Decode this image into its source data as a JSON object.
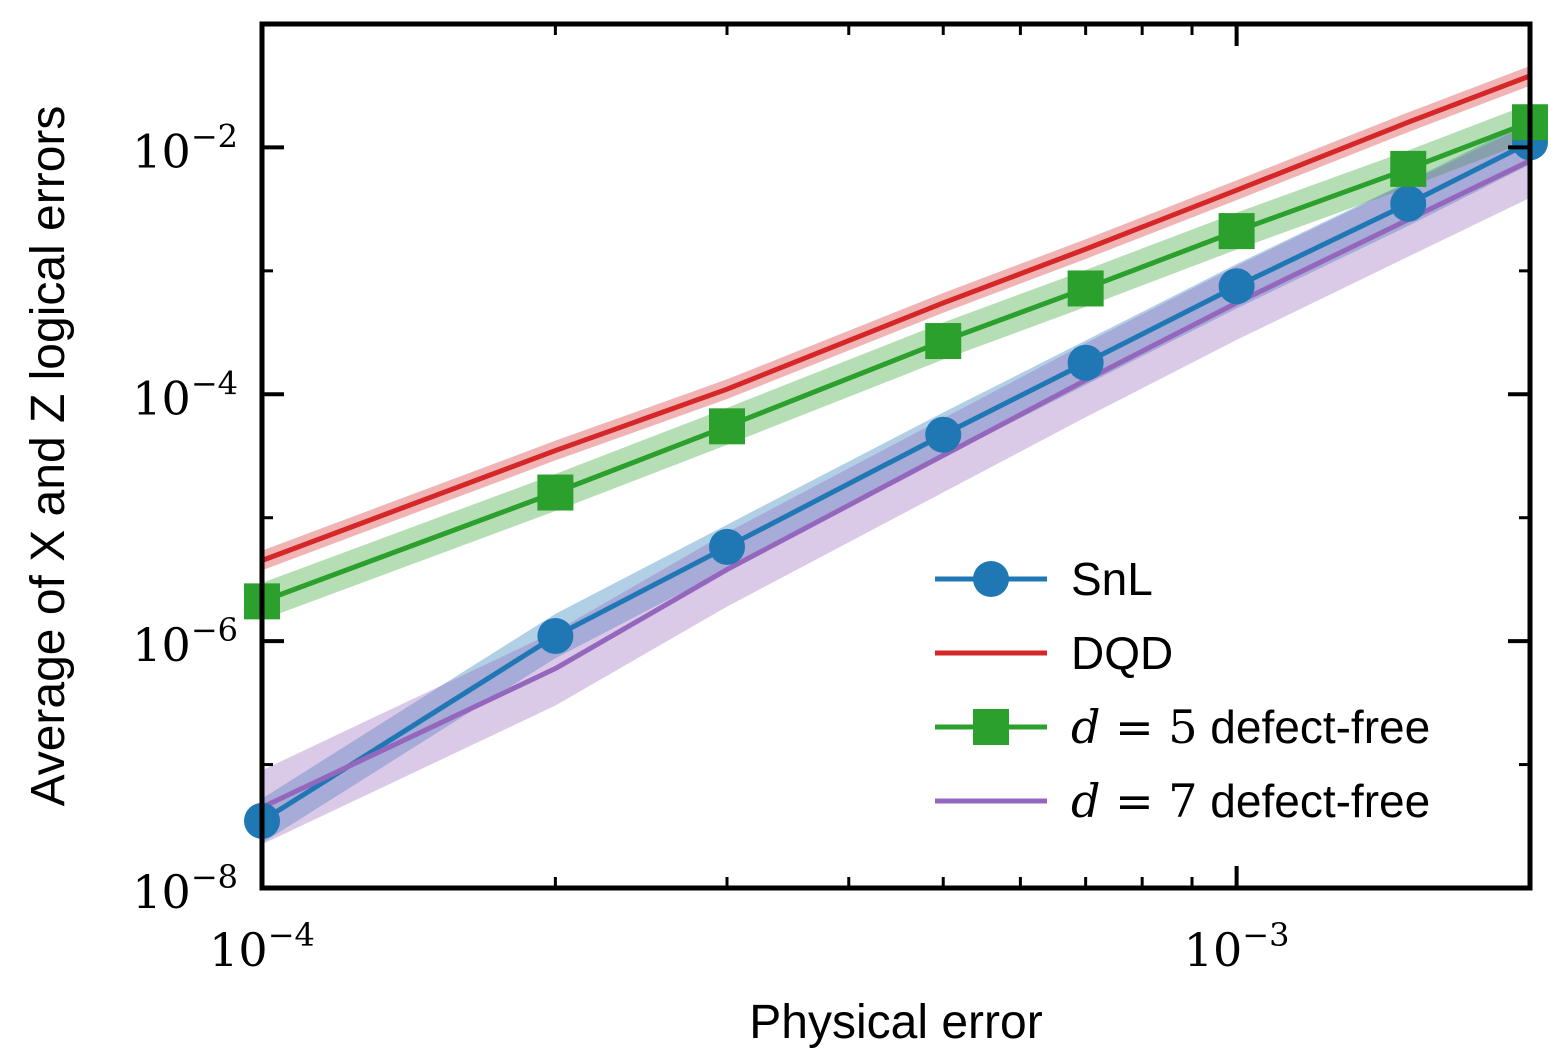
{
  "chart_data": {
    "type": "line",
    "xscale": "log",
    "yscale": "log",
    "xlabel": "Physical error",
    "ylabel": "Average of X and Z logical errors",
    "xlim": [
      0.0001,
      0.002
    ],
    "ylim": [
      1e-08,
      0.1
    ],
    "x_ticks": [
      {
        "value": 0.0001,
        "base": "10",
        "exp": "−4"
      },
      {
        "value": 0.001,
        "base": "10",
        "exp": "−3"
      }
    ],
    "y_ticks": [
      {
        "value": 1e-08,
        "base": "10",
        "exp": "−8"
      },
      {
        "value": 1e-06,
        "base": "10",
        "exp": "−6"
      },
      {
        "value": 0.0001,
        "base": "10",
        "exp": "−4"
      },
      {
        "value": 0.01,
        "base": "10",
        "exp": "−2"
      }
    ],
    "grid": false,
    "legend_position": "lower-right",
    "series": [
      {
        "name": "SnL",
        "label_parts": [
          {
            "text": "SnL",
            "math": false
          }
        ],
        "color": "#1f77b4",
        "marker": "circle",
        "x": [
          0.0001,
          0.0002,
          0.0003,
          0.0005,
          0.0007,
          0.001,
          0.0015,
          0.002
        ],
        "y": [
          3.5e-08,
          1.1e-06,
          5.8e-06,
          4.7e-05,
          0.00018,
          0.00075,
          0.0035,
          0.011
        ],
        "band": 0.18
      },
      {
        "name": "DQD",
        "label_parts": [
          {
            "text": "DQD",
            "math": false
          }
        ],
        "color": "#d62728",
        "marker": "none",
        "x": [
          0.0001,
          0.0002,
          0.0003,
          0.0005,
          0.0007,
          0.001,
          0.0015,
          0.002
        ],
        "y": [
          4.5e-06,
          3.5e-05,
          0.00011,
          0.00055,
          0.0015,
          0.0045,
          0.016,
          0.038
        ],
        "band": 0.08
      },
      {
        "name": "d = 5 defect-free",
        "label_parts": [
          {
            "text": "d",
            "math": true,
            "italic": true
          },
          {
            "text": " = 5",
            "math": true,
            "italic": false
          },
          {
            "text": " defect-free",
            "math": false
          }
        ],
        "color": "#2ca02c",
        "marker": "square",
        "x": [
          0.0001,
          0.0002,
          0.0003,
          0.0005,
          0.0007,
          0.001,
          0.0015,
          0.002
        ],
        "y": [
          2.1e-06,
          1.6e-05,
          5.5e-05,
          0.00027,
          0.00072,
          0.0021,
          0.0067,
          0.016
        ],
        "band": 0.15
      },
      {
        "name": "d = 7 defect-free",
        "label_parts": [
          {
            "text": "d",
            "math": true,
            "italic": true
          },
          {
            "text": " = 7",
            "math": true,
            "italic": false
          },
          {
            "text": " defect-free",
            "math": false
          }
        ],
        "color": "#9467bd",
        "marker": "none",
        "x": [
          0.0001,
          0.0002,
          0.0003,
          0.0005,
          0.0007,
          0.001,
          0.0015,
          0.002
        ],
        "y": [
          4.5e-08,
          6e-07,
          3.8e-06,
          3.2e-05,
          0.00013,
          0.00055,
          0.0026,
          0.0078
        ],
        "band": 0.3
      }
    ]
  }
}
